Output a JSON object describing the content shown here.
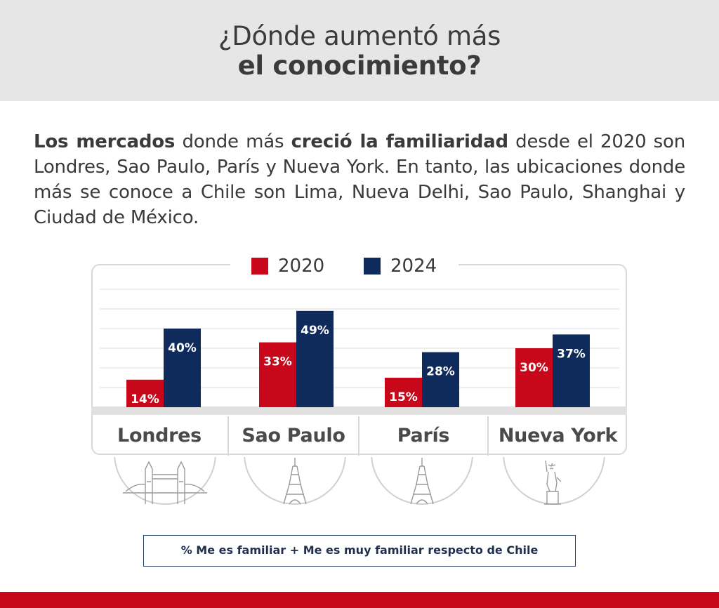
{
  "header": {
    "title_line1": "¿Dónde aumentó más",
    "title_line2": "el conocimiento?"
  },
  "intro": {
    "bold1": "Los mercados",
    "text1": " donde más ",
    "bold2": "creció la familiaridad",
    "text2": " desde el 2020 son Londres, Sao Paulo, París y Nueva York. En tanto, las ubicaciones donde más se conoce a Chile son Lima, Nueva Delhi, Sao Paulo, Shanghai y Ciudad de México."
  },
  "chart_data": {
    "type": "bar",
    "title": "",
    "xlabel": "",
    "ylabel": "",
    "categories": [
      "Londres",
      "Sao Paulo",
      "París",
      "Nueva York"
    ],
    "series": [
      {
        "name": "2020",
        "color": "#c8081a",
        "values": [
          14,
          33,
          15,
          30
        ],
        "labels": [
          "14%",
          "33%",
          "15%",
          "30%"
        ]
      },
      {
        "name": "2024",
        "color": "#0f2b5b",
        "values": [
          40,
          49,
          28,
          37
        ],
        "labels": [
          "40%",
          "49%",
          "28%",
          "37%"
        ]
      }
    ],
    "ylim": [
      0,
      60
    ],
    "grid": true,
    "legend": "top-center",
    "icons": [
      "tower-bridge-icon",
      "eiffel-tower-icon",
      "eiffel-tower-icon",
      "statue-of-liberty-icon"
    ]
  },
  "footnote": "% Me es familiar + Me es muy familiar respecto de Chile",
  "colors": {
    "accent_red": "#c8081a",
    "navy": "#0f2b5b",
    "header_bg": "#e6e6e6"
  }
}
